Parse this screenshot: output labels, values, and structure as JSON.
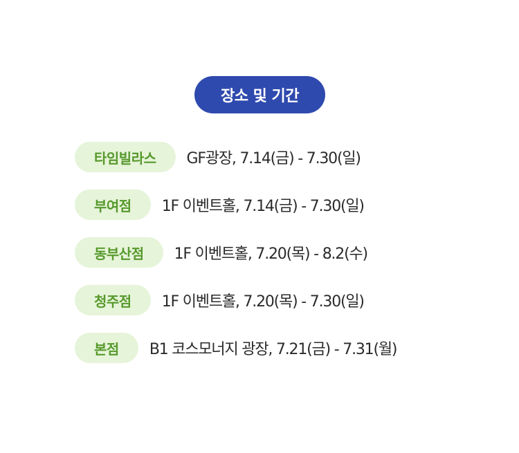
{
  "header": {
    "title": "장소 및 기간"
  },
  "rows": [
    {
      "branch": "타임빌라스",
      "detail": "GF광장, 7.14(금) - 7.30(일)"
    },
    {
      "branch": "부여점",
      "detail": "1F 이벤트홀, 7.14(금) - 7.30(일)"
    },
    {
      "branch": "동부산점",
      "detail": "1F 이벤트홀, 7.20(목) - 8.2(수)"
    },
    {
      "branch": "청주점",
      "detail": "1F 이벤트홀, 7.20(목) - 7.30(일)"
    },
    {
      "branch": "본점",
      "detail": "B1 코스모너지 광장, 7.21(금) - 7.31(월)"
    }
  ],
  "colors": {
    "header_bg": "#2f4aae",
    "branch_bg": "#e6f4d9",
    "branch_text": "#57992c"
  }
}
